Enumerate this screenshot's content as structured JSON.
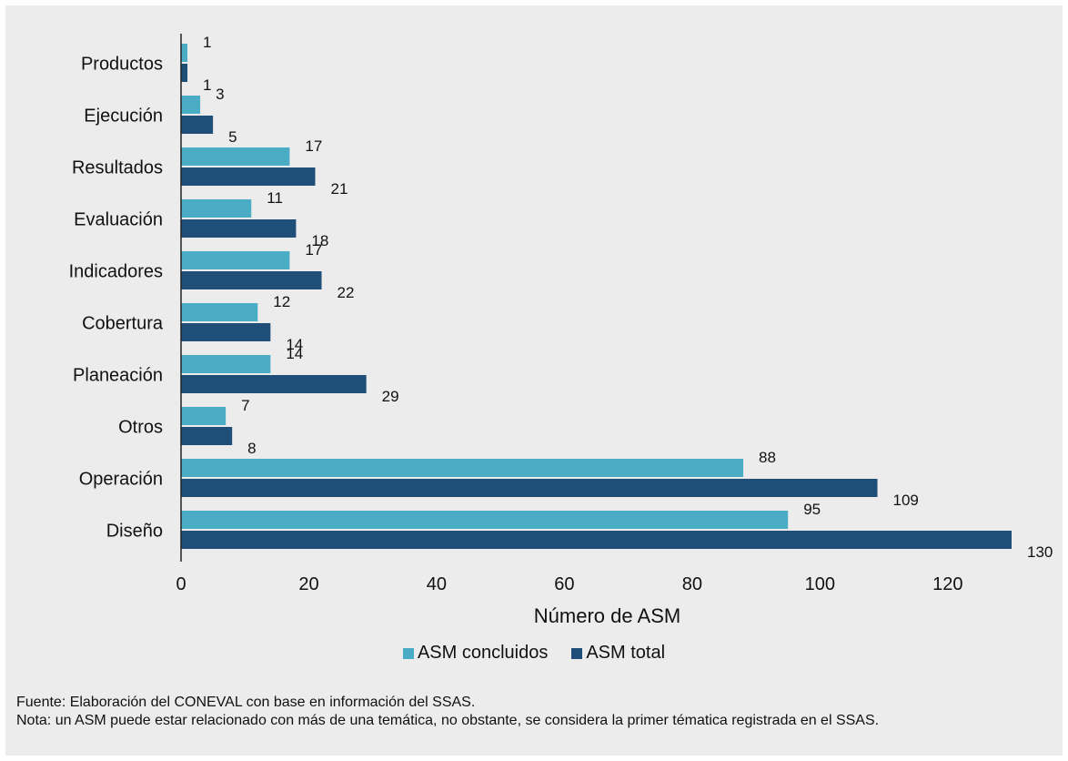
{
  "chart_data": {
    "type": "bar",
    "orientation": "horizontal",
    "categories": [
      "Productos",
      "Ejecución",
      "Resultados",
      "Evaluación",
      "Indicadores",
      "Cobertura",
      "Planeación",
      "Otros",
      "Operación",
      "Diseño"
    ],
    "series": [
      {
        "name": "ASM concluidos",
        "color": "#4bacc6",
        "values": [
          1,
          3,
          17,
          11,
          17,
          12,
          14,
          7,
          88,
          95
        ]
      },
      {
        "name": "ASM total",
        "color": "#1f4e79",
        "values": [
          1,
          5,
          21,
          18,
          22,
          14,
          29,
          8,
          109,
          130
        ]
      }
    ],
    "xlabel": "Número de ASM",
    "xlim": [
      0,
      130
    ],
    "xticks": [
      0,
      20,
      40,
      60,
      80,
      100,
      120
    ],
    "grid": false,
    "legend_position": "bottom"
  },
  "notes": {
    "source": "Fuente: Elaboración del CONEVAL con base en información del SSAS.",
    "note": "Nota: un ASM puede estar relacionado con más de una temática, no obstante, se considera la primer tématica registrada en el SSAS."
  }
}
